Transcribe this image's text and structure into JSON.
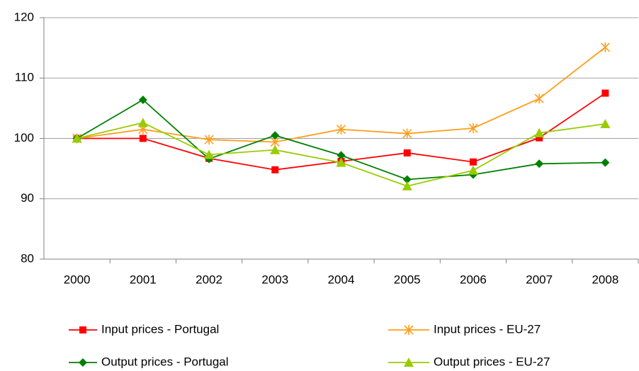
{
  "chart_data": {
    "type": "line",
    "categories": [
      "2000",
      "2001",
      "2002",
      "2003",
      "2004",
      "2005",
      "2006",
      "2007",
      "2008"
    ],
    "series": [
      {
        "name": "Input prices - Portugal",
        "color": "#ff0000",
        "marker": "square",
        "values": [
          100,
          100,
          96.7,
          94.8,
          96.2,
          97.6,
          96.1,
          100.1,
          107.5
        ]
      },
      {
        "name": "Input prices - EU-27",
        "color": "#ff9e1b",
        "marker": "star",
        "values": [
          100,
          101.5,
          99.8,
          99.4,
          101.5,
          100.8,
          101.7,
          106.6,
          115.1
        ]
      },
      {
        "name": "Output prices - Portugal",
        "color": "#008000",
        "marker": "diamond",
        "values": [
          100,
          106.4,
          96.6,
          100.5,
          97.2,
          93.2,
          94,
          95.8,
          96
        ]
      },
      {
        "name": "Output prices - EU-27",
        "color": "#99cc00",
        "marker": "triangle",
        "values": [
          100,
          102.6,
          97.3,
          98.1,
          96,
          92.1,
          94.7,
          100.9,
          102.4
        ]
      }
    ],
    "ylim": [
      80,
      120
    ],
    "yticks": [
      80,
      90,
      100,
      110,
      120
    ],
    "grid": true,
    "legend": "bottom"
  }
}
